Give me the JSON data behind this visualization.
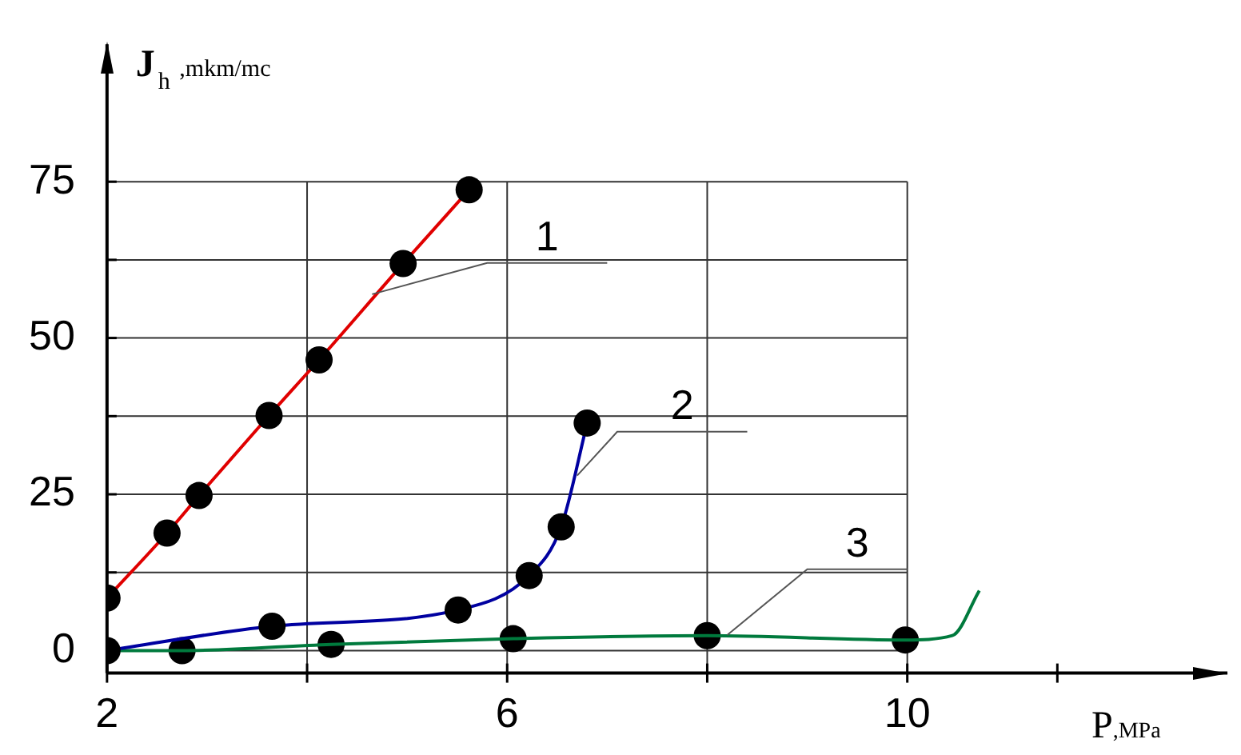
{
  "chart_data": {
    "type": "line",
    "xlabel": "P,MPa",
    "ylabel": "J$_{h}$ ,mkm/mc",
    "xlim": [
      2,
      13.2
    ],
    "ylim": [
      -3.6,
      97
    ],
    "xticks": [
      2,
      {
        "value": 4,
        "label": null
      },
      6,
      {
        "value": 8,
        "label": null
      },
      10,
      {
        "value": 11.5,
        "label": null
      }
    ],
    "yticks": [
      0,
      {
        "value": 12.5,
        "label": null
      },
      25,
      {
        "value": 37.5,
        "label": null
      },
      50,
      {
        "value": 62.5,
        "label": null
      },
      75
    ],
    "grid": true,
    "legend": false,
    "series": [
      {
        "name": "1",
        "color": "#e00000",
        "marker": "circle",
        "x": [
          2,
          2.6,
          2.92,
          3.62,
          4.12,
          4.96,
          5.62
        ],
        "values": [
          8.4,
          18.8,
          24.8,
          37.6,
          46.5,
          61.9,
          73.7
        ]
      },
      {
        "name": "2",
        "color": "#0000a0",
        "marker": "circle",
        "x": [
          2,
          3.65,
          5.51,
          6.22,
          6.54,
          6.8
        ],
        "values": [
          0,
          3.9,
          6.5,
          12,
          19.8,
          36.4
        ]
      },
      {
        "name": "3",
        "color": "#007a3d",
        "marker": "none",
        "x": [
          2,
          2.75,
          4.24,
          6.06,
          8,
          9.98,
          10.45,
          10.72
        ],
        "values": [
          0,
          0,
          1,
          1.9,
          2.4,
          1.7,
          2.4,
          9.6
        ]
      },
      {
        "type": "scatter",
        "color": "#000000",
        "marker": "circle",
        "x": [
          2.75,
          4.24,
          6.06,
          8,
          9.98
        ],
        "values": [
          0,
          1,
          1.9,
          2.4,
          1.7
        ]
      }
    ]
  }
}
